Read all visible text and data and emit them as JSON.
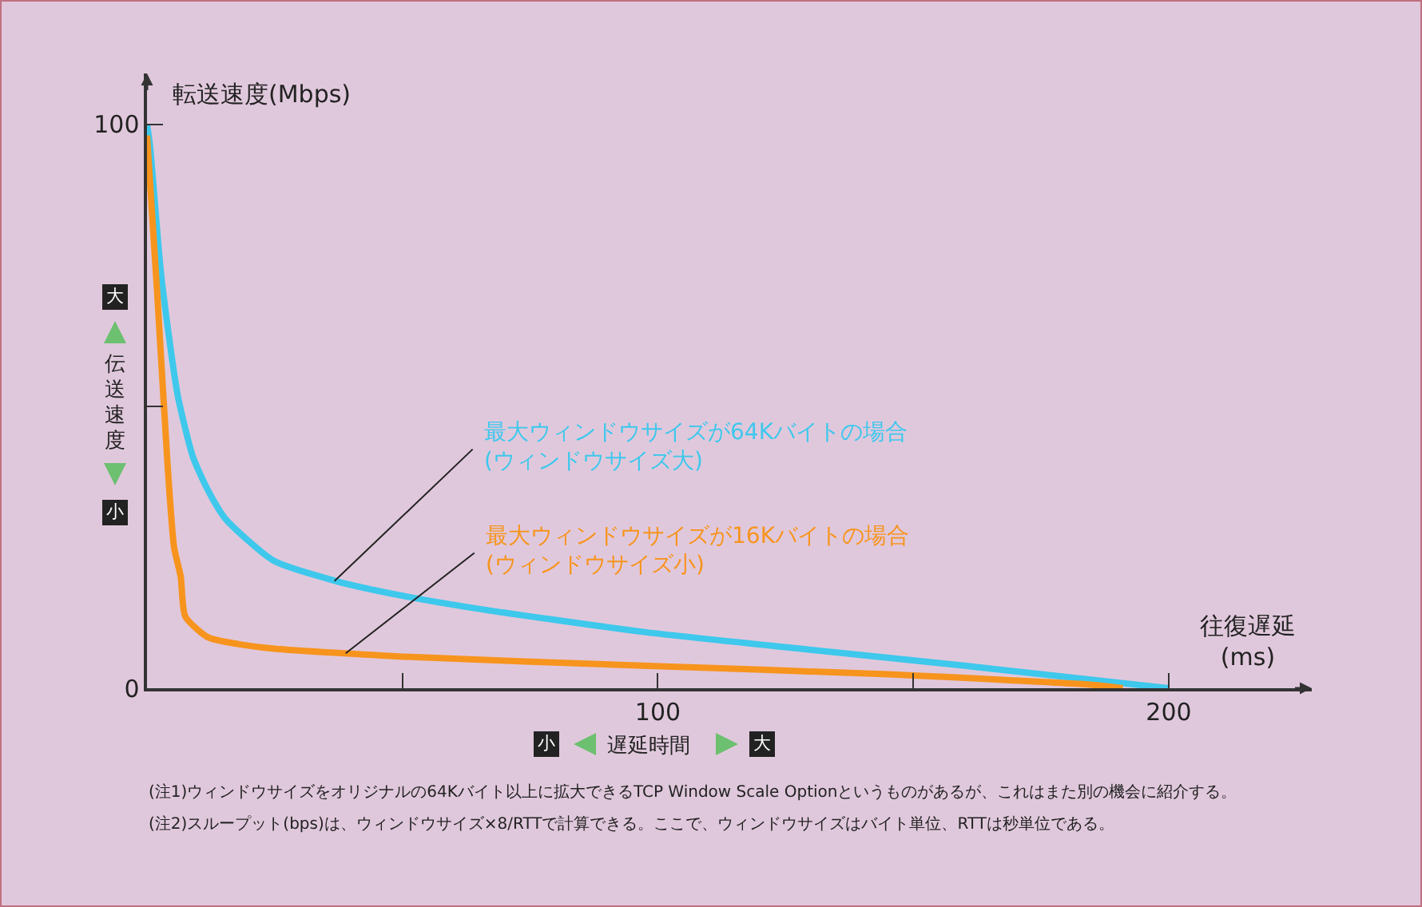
{
  "chart_data": {
    "type": "line",
    "ylabel": "転送速度(Mbps)",
    "xlabel": "往復遅延\n(ms)",
    "x": [
      0,
      0.6,
      2.8,
      6,
      9,
      12,
      15.4,
      24.8,
      37,
      50,
      65.5,
      97,
      128,
      160,
      200
    ],
    "series": [
      {
        "name": "最大ウィンドウサイズが64Kバイトの場合\n(ウィンドウサイズ大)",
        "color": "#3ec8ec",
        "values": [
          100,
          96,
          73,
          52,
          41,
          35,
          30,
          22.6,
          19,
          16.4,
          14,
          10,
          7,
          4,
          0
        ]
      },
      {
        "name": "最大ウィンドウサイズが16Kバイトの場合\n(ウィンドウサイズ小)",
        "color": "#f7941d",
        "x": [
          0,
          2,
          4,
          5.3,
          6.6,
          7.5,
          12,
          18,
          25,
          50,
          97,
          144,
          185,
          191
        ],
        "values": [
          98,
          70,
          40,
          25,
          19.8,
          12.7,
          9,
          7.8,
          7,
          5.6,
          4,
          2.5,
          0.6,
          0
        ]
      }
    ],
    "xlim": [
      0,
      228
    ],
    "ylim": [
      0,
      109
    ],
    "xticks": [
      {
        "value": 50,
        "label": null
      },
      100,
      {
        "value": 150,
        "label": null
      },
      200
    ],
    "yticks": [
      0,
      {
        "value": 50,
        "label": null
      },
      100
    ],
    "grid": false,
    "legend": false,
    "marker": "none",
    "line_style": "solid",
    "annotations": [
      "大",
      "伝送速度",
      "小",
      "小",
      "遅延時間",
      "大",
      "(注1)ウィンドウサイズをオリジナルの64Kバイト以上に拡大できるTCP Window Scale Optionというものがあるが、これはまた別の機会に紹介する。",
      "(注2)スループット(bps)は、ウィンドウサイズ×8/RTTで計算できる。ここで、ウィンドウサイズはバイト単位、RTTは秒単位である。"
    ]
  }
}
